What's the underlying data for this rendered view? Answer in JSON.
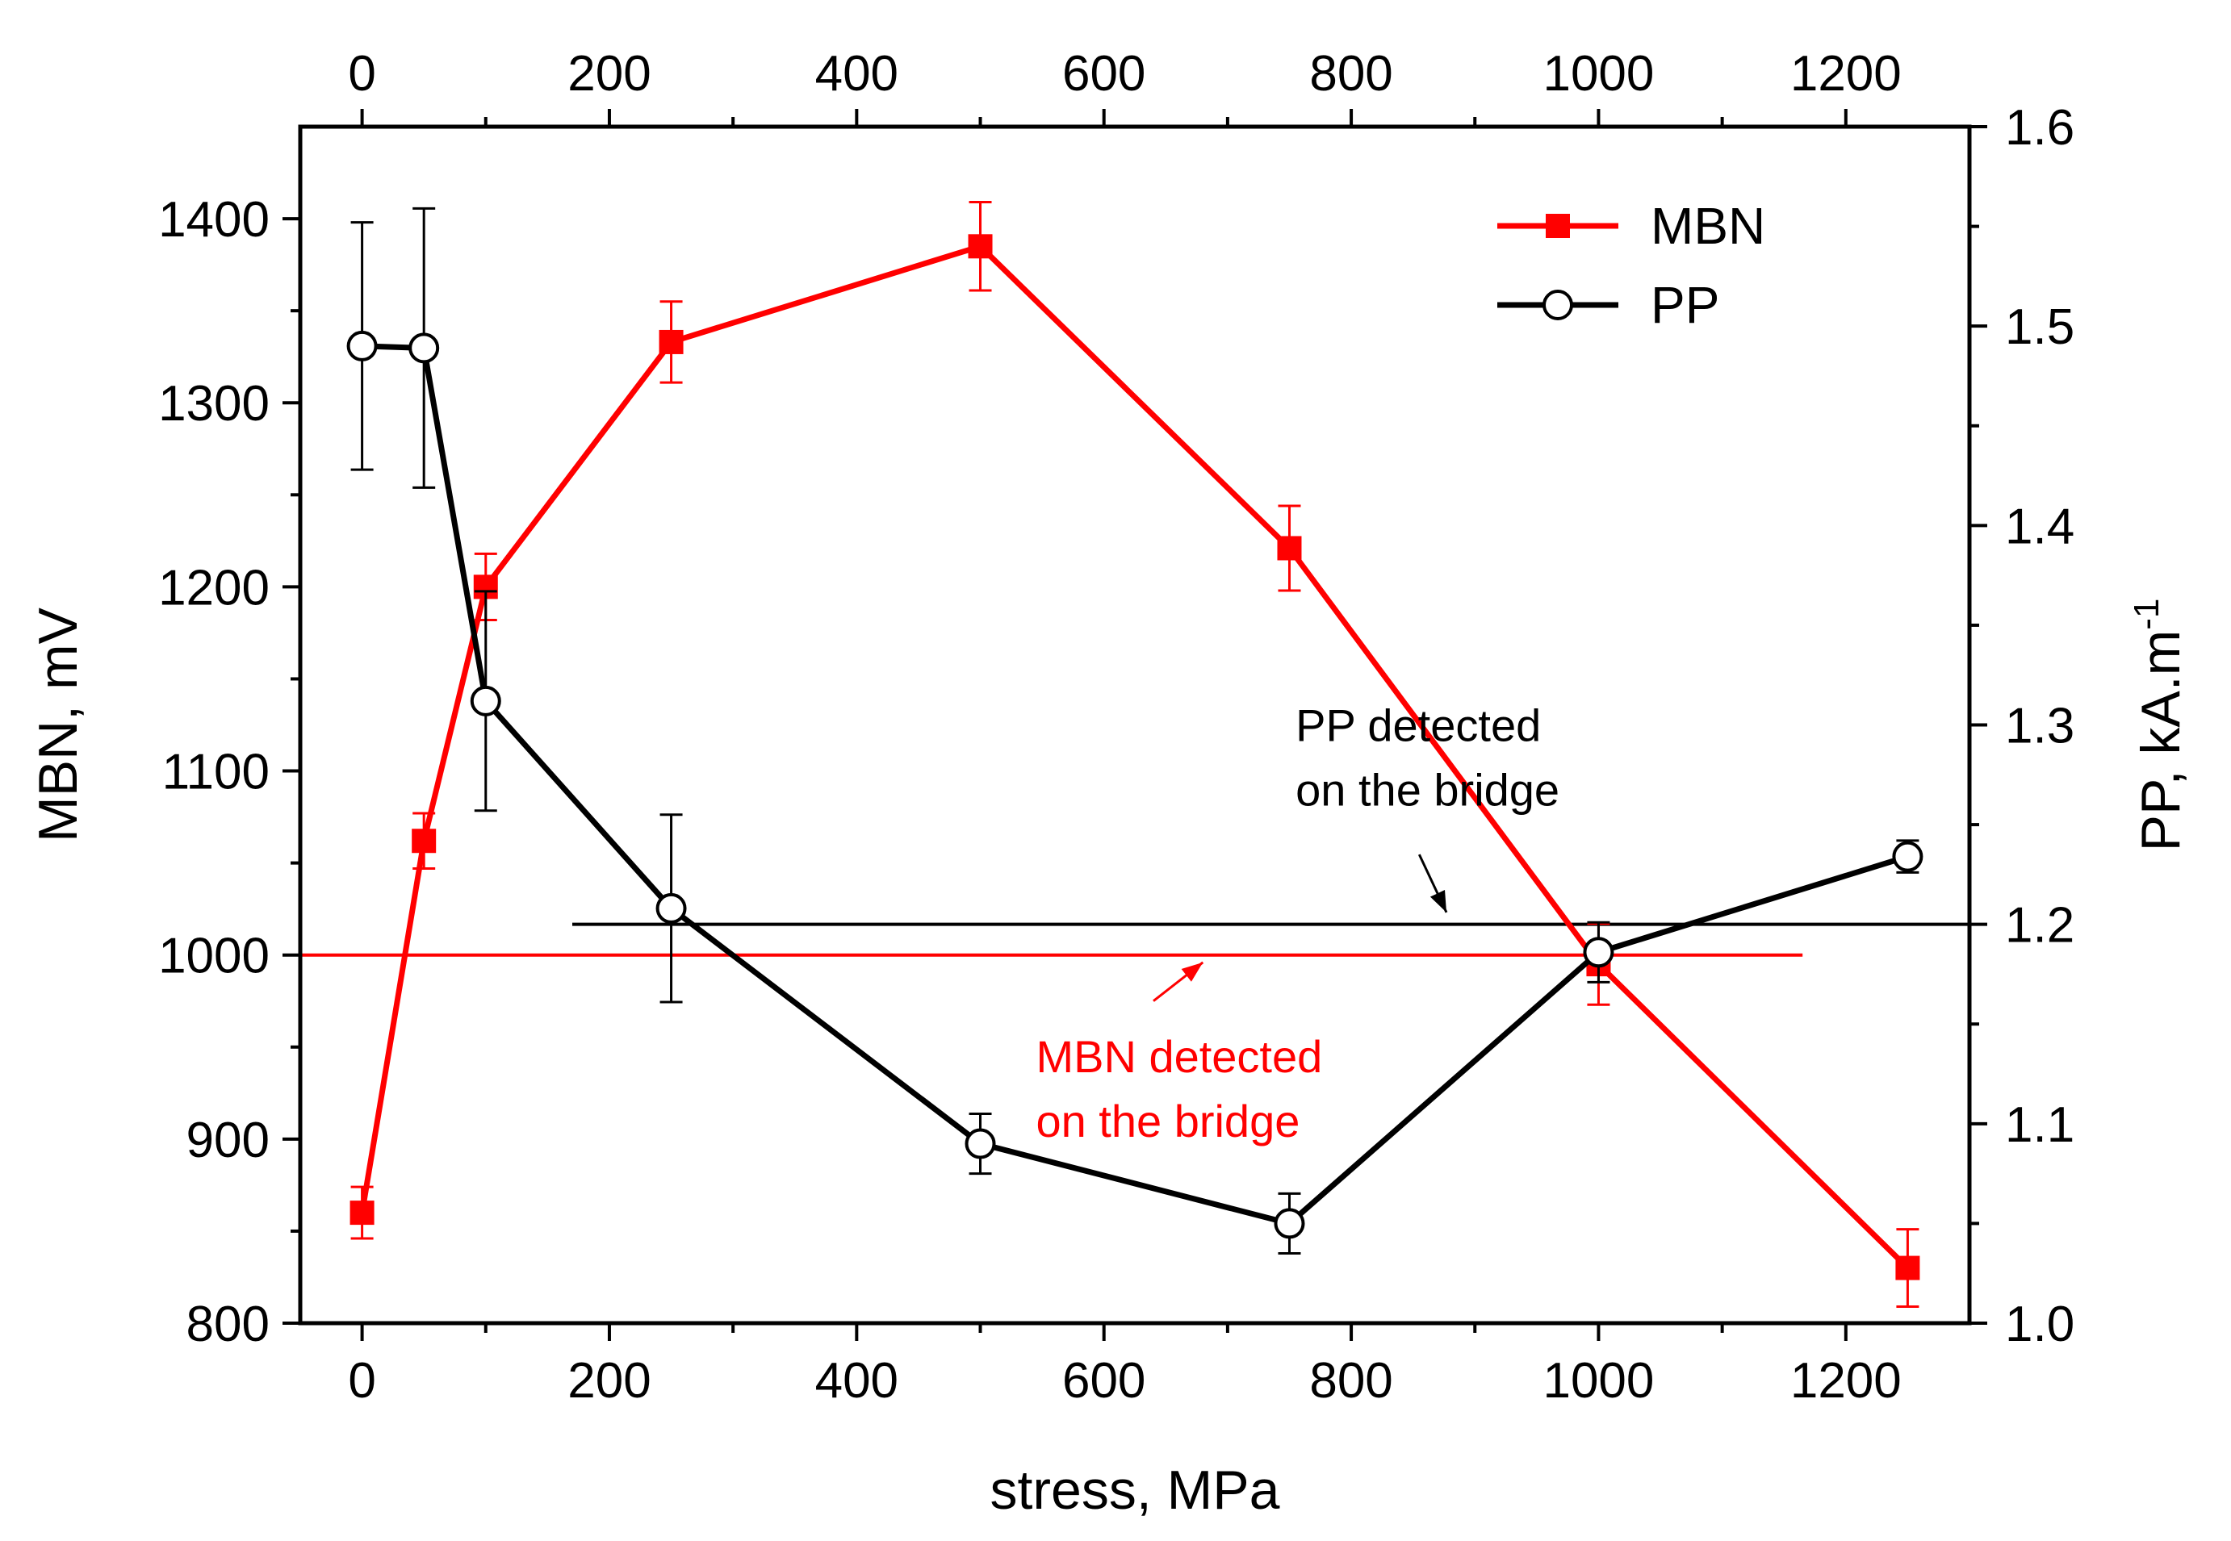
{
  "chart_data": {
    "type": "line",
    "xlabel": "stress, MPa",
    "x2label": "",
    "ylabel": "MBN, mV",
    "y2label": "PP, kA.m",
    "y2label_superscript": "-1",
    "xlim": [
      -50,
      1300
    ],
    "ylim": [
      800,
      1450
    ],
    "y2lim": [
      1.0,
      1.6
    ],
    "x_ticks": [
      0,
      200,
      400,
      600,
      800,
      1000,
      1200
    ],
    "x_tick_labels": [
      "0",
      "200",
      "400",
      "600",
      "800",
      "1000",
      "1200"
    ],
    "y_ticks": [
      800,
      900,
      1000,
      1100,
      1200,
      1300,
      1400
    ],
    "y_tick_labels": [
      "800",
      "900",
      "1000",
      "1100",
      "1200",
      "1300",
      "1400"
    ],
    "y2_ticks": [
      1.0,
      1.1,
      1.2,
      1.3,
      1.4,
      1.5,
      1.6
    ],
    "y2_tick_labels": [
      "1.0",
      "1.1",
      "1.2",
      "1.3",
      "1.4",
      "1.5",
      "1.6"
    ],
    "legend_position": "top-right",
    "series": [
      {
        "name": "MBN",
        "axis": "left",
        "color": "#ff0000",
        "marker": "filled-square",
        "x": [
          0,
          50,
          100,
          250,
          500,
          750,
          1000,
          1250
        ],
        "y": [
          860,
          1062,
          1200,
          1333,
          1385,
          1221,
          995,
          830
        ],
        "err": [
          14,
          15,
          18,
          22,
          24,
          23,
          22,
          21
        ]
      },
      {
        "name": "PP",
        "axis": "right",
        "color": "#000000",
        "marker": "open-circle",
        "x": [
          0,
          50,
          100,
          250,
          500,
          750,
          1000,
          1250
        ],
        "y": [
          1.49,
          1.489,
          1.312,
          1.208,
          1.09,
          1.05,
          1.186,
          1.234
        ],
        "err": [
          0.062,
          0.07,
          0.055,
          0.047,
          0.015,
          0.015,
          0.015,
          0.008
        ]
      }
    ],
    "reference_lines": [
      {
        "name": "pp-bridge-line",
        "axis": "right",
        "y": 1.2,
        "x_start": 170,
        "x_end": 1300,
        "color": "#000000"
      },
      {
        "name": "mbn-bridge-line",
        "axis": "left",
        "y": 1000,
        "x_start": -50,
        "x_end": 1165,
        "color": "#ff0000"
      }
    ],
    "annotations": [
      {
        "name": "pp-annotation",
        "lines": [
          "PP detected",
          "on the bridge"
        ],
        "color": "#000000",
        "text_x": 755,
        "text_y1": 1.3,
        "arrow_from": [
          855,
          1.235
        ],
        "arrow_to": [
          877,
          1.206
        ],
        "axis": "right"
      },
      {
        "name": "mbn-annotation",
        "lines": [
          "MBN detected",
          "on the bridge"
        ],
        "color": "#ff0000",
        "text_x": 545,
        "text_y1": 945,
        "arrow_from": [
          640,
          975
        ],
        "arrow_to": [
          680,
          996
        ],
        "axis": "left"
      }
    ]
  }
}
